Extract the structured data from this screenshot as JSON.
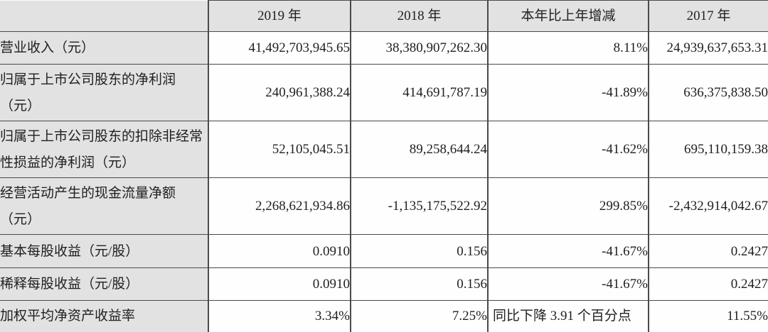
{
  "table": {
    "header": {
      "label": "",
      "col_2019": "2019 年",
      "col_2018": "2018 年",
      "col_change": "本年比上年增减",
      "col_2017": "2017 年"
    },
    "rows": [
      {
        "label": "营业收入（元）",
        "y2019": "41,492,703,945.65",
        "y2018": "38,380,907,262.30",
        "change": "8.11%",
        "y2017": "24,939,637,653.31"
      },
      {
        "label": "归属于上市公司股东的净利润（元）",
        "y2019": "240,961,388.24",
        "y2018": "414,691,787.19",
        "change": "-41.89%",
        "y2017": "636,375,838.50"
      },
      {
        "label": "归属于上市公司股东的扣除非经常性损益的净利润（元）",
        "y2019": "52,105,045.51",
        "y2018": "89,258,644.24",
        "change": "-41.62%",
        "y2017": "695,110,159.38"
      },
      {
        "label": "经营活动产生的现金流量净额（元）",
        "y2019": "2,268,621,934.86",
        "y2018": "-1,135,175,522.92",
        "change": "299.85%",
        "y2017": "-2,432,914,042.67"
      },
      {
        "label": "基本每股收益（元/股）",
        "y2019": "0.0910",
        "y2018": "0.156",
        "change": "-41.67%",
        "y2017": "0.2427"
      },
      {
        "label": "稀释每股收益（元/股）",
        "y2019": "0.0910",
        "y2018": "0.156",
        "change": "-41.67%",
        "y2017": "0.2427"
      },
      {
        "label": "加权平均净资产收益率",
        "y2019": "3.34%",
        "y2018": "7.25%",
        "change": "同比下降 3.91 个百分点",
        "y2017": "11.55%"
      }
    ],
    "colors": {
      "header_bg": "#e2e2e2",
      "label_bg": "#e2e2e2",
      "cell_bg": "#fefefe",
      "border": "#4a4a4a",
      "text": "#1f1f1f"
    }
  }
}
